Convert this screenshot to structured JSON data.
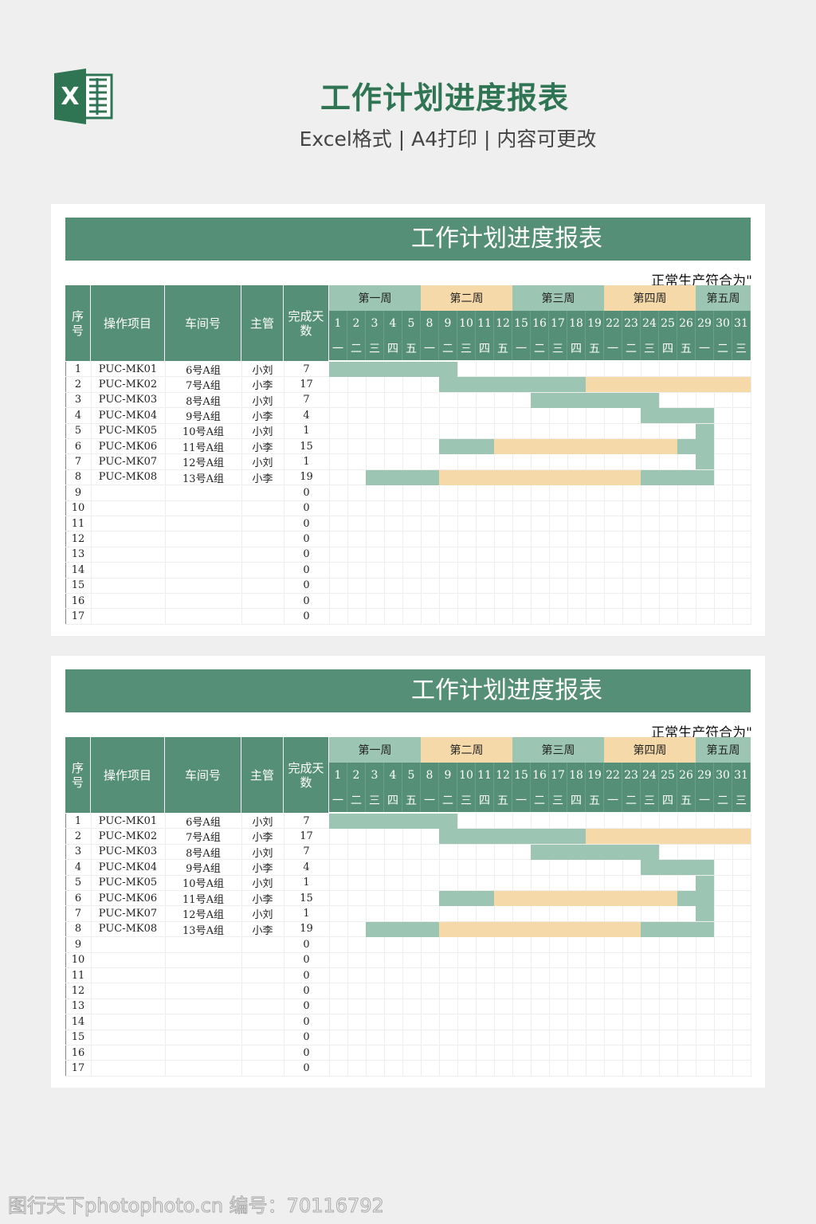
{
  "header": {
    "title": "工作计划进度报表",
    "subtitle": "Excel格式 | A4打印 | 内容可更改"
  },
  "colors": {
    "header_green": "#568f77",
    "teal": "#9cc5b4",
    "orange": "#f6d9a8"
  },
  "sheet": {
    "title": "工作计划进度报表",
    "note": "正常生产符合为\"",
    "columns": [
      "序号",
      "操作项目",
      "车间号",
      "主管",
      "完成天数"
    ],
    "weeks": [
      "第一周",
      "第二周",
      "第三周",
      "第四周",
      "第五周"
    ],
    "days": [
      "1",
      "2",
      "3",
      "4",
      "5",
      "8",
      "9",
      "10",
      "11",
      "12",
      "15",
      "16",
      "17",
      "18",
      "19",
      "22",
      "23",
      "24",
      "25",
      "26",
      "29",
      "30",
      "31"
    ],
    "weekdays": [
      "一",
      "二",
      "三",
      "四",
      "五",
      "一",
      "二",
      "三",
      "四",
      "五",
      "一",
      "二",
      "三",
      "四",
      "五",
      "一",
      "二",
      "三",
      "四",
      "五",
      "一",
      "二",
      "三"
    ],
    "rows": [
      {
        "no": "1",
        "item": "PUC-MK01",
        "shop": "6号A组",
        "lead": "小刘",
        "days": "7",
        "bars": [
          {
            "from": 0,
            "to": 6,
            "color": "teal"
          }
        ]
      },
      {
        "no": "2",
        "item": "PUC-MK02",
        "shop": "7号A组",
        "lead": "小李",
        "days": "17",
        "bars": [
          {
            "from": 6,
            "to": 13,
            "color": "teal"
          },
          {
            "from": 14,
            "to": 22,
            "color": "orange"
          }
        ]
      },
      {
        "no": "3",
        "item": "PUC-MK03",
        "shop": "8号A组",
        "lead": "小刘",
        "days": "7",
        "bars": [
          {
            "from": 11,
            "to": 17,
            "color": "teal"
          }
        ]
      },
      {
        "no": "4",
        "item": "PUC-MK04",
        "shop": "9号A组",
        "lead": "小李",
        "days": "4",
        "bars": [
          {
            "from": 17,
            "to": 20,
            "color": "teal"
          }
        ]
      },
      {
        "no": "5",
        "item": "PUC-MK05",
        "shop": "10号A组",
        "lead": "小刘",
        "days": "1",
        "bars": [
          {
            "from": 20,
            "to": 20,
            "color": "teal"
          }
        ]
      },
      {
        "no": "6",
        "item": "PUC-MK06",
        "shop": "11号A组",
        "lead": "小李",
        "days": "15",
        "bars": [
          {
            "from": 6,
            "to": 8,
            "color": "teal"
          },
          {
            "from": 9,
            "to": 18,
            "color": "orange"
          },
          {
            "from": 19,
            "to": 20,
            "color": "teal"
          }
        ]
      },
      {
        "no": "7",
        "item": "PUC-MK07",
        "shop": "12号A组",
        "lead": "小刘",
        "days": "1",
        "bars": [
          {
            "from": 20,
            "to": 20,
            "color": "teal"
          }
        ]
      },
      {
        "no": "8",
        "item": "PUC-MK08",
        "shop": "13号A组",
        "lead": "小李",
        "days": "19",
        "bars": [
          {
            "from": 2,
            "to": 5,
            "color": "teal"
          },
          {
            "from": 6,
            "to": 16,
            "color": "orange"
          },
          {
            "from": 17,
            "to": 20,
            "color": "teal"
          }
        ]
      },
      {
        "no": "9",
        "item": "",
        "shop": "",
        "lead": "",
        "days": "0",
        "bars": []
      },
      {
        "no": "10",
        "item": "",
        "shop": "",
        "lead": "",
        "days": "0",
        "bars": []
      },
      {
        "no": "11",
        "item": "",
        "shop": "",
        "lead": "",
        "days": "0",
        "bars": []
      },
      {
        "no": "12",
        "item": "",
        "shop": "",
        "lead": "",
        "days": "0",
        "bars": []
      },
      {
        "no": "13",
        "item": "",
        "shop": "",
        "lead": "",
        "days": "0",
        "bars": []
      },
      {
        "no": "14",
        "item": "",
        "shop": "",
        "lead": "",
        "days": "0",
        "bars": []
      },
      {
        "no": "15",
        "item": "",
        "shop": "",
        "lead": "",
        "days": "0",
        "bars": []
      },
      {
        "no": "16",
        "item": "",
        "shop": "",
        "lead": "",
        "days": "0",
        "bars": []
      },
      {
        "no": "17",
        "item": "",
        "shop": "",
        "lead": "",
        "days": "0",
        "bars": []
      }
    ]
  },
  "watermark": "图行天下photophoto.cn 编号：70116792"
}
